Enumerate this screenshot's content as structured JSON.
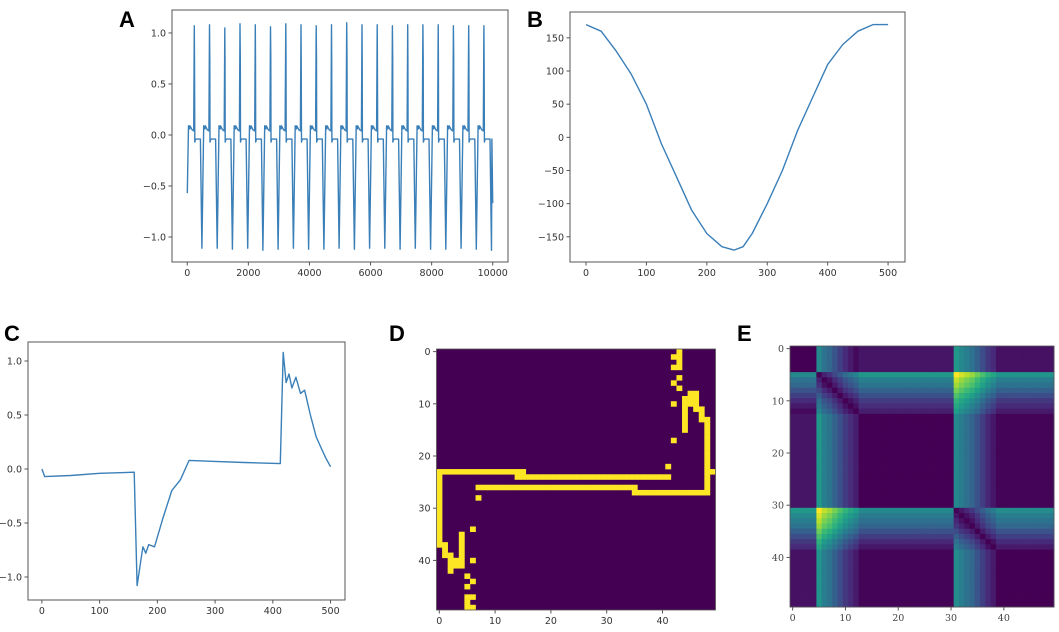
{
  "panel_labels": [
    "A",
    "B",
    "C",
    "D",
    "E"
  ],
  "colors": {
    "line": "#3a7fb8",
    "heat_low": "#440154",
    "heat_high": "#fde725",
    "axes": "#555555"
  },
  "chart_data": [
    {
      "panel": "A",
      "type": "line",
      "xlim": [
        -500,
        10500
      ],
      "ylim": [
        -1.245,
        1.225
      ],
      "xticks": [
        0,
        2000,
        4000,
        6000,
        8000,
        10000
      ],
      "yticks": [
        -1.0,
        -0.5,
        0.0,
        0.5,
        1.0
      ],
      "start": [
        0,
        -0.57
      ],
      "end": [
        10000,
        -0.67
      ],
      "peaks_x": [
        230,
        729,
        1228,
        1727,
        2226,
        2725,
        3224,
        3723,
        4222,
        4721,
        5220,
        5719,
        6218,
        6717,
        7216,
        7715,
        8214,
        8713,
        9212,
        9711
      ],
      "peaks_y": [
        1.07,
        1.08,
        1.05,
        1.09,
        1.08,
        1.06,
        1.09,
        1.08,
        1.07,
        1.08,
        1.1,
        1.08,
        1.08,
        1.07,
        1.08,
        1.08,
        1.08,
        1.07,
        1.07,
        1.07
      ],
      "troughs_y": [
        -1.11,
        -1.11,
        -1.12,
        -1.11,
        -1.13,
        -1.12,
        -1.11,
        -1.12,
        -1.12,
        -1.11,
        -1.12,
        -1.11,
        -1.11,
        -1.12,
        -1.11,
        -1.12,
        -1.12,
        -1.11,
        -1.12,
        -1.13
      ]
    },
    {
      "panel": "B",
      "type": "line",
      "xlim": [
        -26.5,
        528
      ],
      "ylim": [
        -188,
        189
      ],
      "xticks": [
        0,
        100,
        200,
        300,
        400,
        500
      ],
      "yticks": [
        -150,
        -100,
        -50,
        0,
        50,
        100,
        150
      ],
      "x": [
        0,
        25,
        50,
        75,
        100,
        125,
        150,
        175,
        200,
        225,
        245,
        260,
        275,
        300,
        325,
        350,
        375,
        400,
        425,
        450,
        475,
        500
      ],
      "y": [
        170,
        160,
        130,
        95,
        50,
        -10,
        -60,
        -110,
        -145,
        -165,
        -170,
        -165,
        -145,
        -100,
        -50,
        10,
        60,
        110,
        140,
        160,
        170,
        170
      ]
    },
    {
      "panel": "C",
      "type": "line",
      "xlim": [
        -24,
        525
      ],
      "ylim": [
        -1.213,
        1.176
      ],
      "xticks": [
        0,
        100,
        200,
        300,
        400,
        500
      ],
      "yticks": [
        -1.0,
        -0.5,
        0.0,
        0.5,
        1.0
      ],
      "x": [
        0,
        5,
        50,
        100,
        160,
        165,
        170,
        175,
        180,
        185,
        195,
        210,
        225,
        240,
        255,
        300,
        350,
        413,
        418,
        423,
        428,
        433,
        440,
        448,
        455,
        465,
        475,
        485,
        492,
        500
      ],
      "y": [
        0.0,
        -0.07,
        -0.06,
        -0.04,
        -0.03,
        -1.08,
        -0.9,
        -0.72,
        -0.78,
        -0.7,
        -0.72,
        -0.45,
        -0.2,
        -0.1,
        0.08,
        0.07,
        0.06,
        0.05,
        1.08,
        0.8,
        0.88,
        0.75,
        0.85,
        0.7,
        0.73,
        0.5,
        0.3,
        0.18,
        0.1,
        0.02
      ]
    },
    {
      "panel": "D",
      "type": "heatmap",
      "size": [
        50,
        50
      ],
      "xticks": [
        0,
        10,
        20,
        30,
        40
      ],
      "yticks": [
        0,
        10,
        20,
        30,
        40
      ],
      "values": "binary",
      "on_runs": [
        [
          0,
          43,
          43
        ],
        [
          1,
          42,
          43
        ],
        [
          2,
          43,
          43
        ],
        [
          3,
          42,
          43
        ],
        [
          5,
          43,
          43
        ],
        [
          6,
          42,
          42
        ],
        [
          7,
          43,
          43
        ],
        [
          8,
          45,
          46
        ],
        [
          9,
          44,
          46
        ],
        [
          10,
          42,
          42
        ],
        [
          10,
          44,
          46
        ],
        [
          11,
          44,
          44
        ],
        [
          11,
          46,
          47
        ],
        [
          12,
          44,
          44
        ],
        [
          12,
          47,
          47
        ],
        [
          13,
          44,
          44
        ],
        [
          13,
          47,
          48
        ],
        [
          14,
          44,
          44
        ],
        [
          14,
          48,
          48
        ],
        [
          15,
          44,
          44
        ],
        [
          15,
          48,
          48
        ],
        [
          16,
          48,
          48
        ],
        [
          17,
          42,
          42
        ],
        [
          17,
          48,
          48
        ],
        [
          18,
          48,
          48
        ],
        [
          19,
          48,
          48
        ],
        [
          20,
          48,
          48
        ],
        [
          21,
          48,
          48
        ],
        [
          22,
          41,
          41
        ],
        [
          22,
          48,
          48
        ],
        [
          23,
          0,
          15
        ],
        [
          23,
          48,
          49
        ],
        [
          24,
          0,
          0
        ],
        [
          24,
          14,
          41
        ],
        [
          24,
          48,
          48
        ],
        [
          25,
          0,
          0
        ],
        [
          25,
          48,
          48
        ],
        [
          26,
          0,
          0
        ],
        [
          26,
          7,
          35
        ],
        [
          26,
          48,
          48
        ],
        [
          27,
          0,
          0
        ],
        [
          27,
          35,
          48
        ],
        [
          28,
          0,
          0
        ],
        [
          28,
          7,
          7
        ],
        [
          29,
          0,
          0
        ],
        [
          30,
          0,
          0
        ],
        [
          31,
          0,
          0
        ],
        [
          32,
          0,
          0
        ],
        [
          33,
          0,
          0
        ],
        [
          34,
          0,
          0
        ],
        [
          34,
          6,
          6
        ],
        [
          35,
          0,
          0
        ],
        [
          35,
          4,
          4
        ],
        [
          36,
          0,
          0
        ],
        [
          36,
          4,
          4
        ],
        [
          37,
          0,
          1
        ],
        [
          37,
          4,
          4
        ],
        [
          38,
          1,
          1
        ],
        [
          38,
          4,
          4
        ],
        [
          39,
          1,
          2
        ],
        [
          39,
          4,
          4
        ],
        [
          40,
          2,
          4
        ],
        [
          40,
          6,
          6
        ],
        [
          41,
          2,
          4
        ],
        [
          42,
          2,
          2
        ],
        [
          43,
          5,
          5
        ],
        [
          44,
          6,
          6
        ],
        [
          45,
          5,
          5
        ],
        [
          47,
          5,
          6
        ],
        [
          48,
          5,
          5
        ],
        [
          49,
          5,
          6
        ]
      ]
    },
    {
      "panel": "E",
      "type": "heatmap",
      "size": [
        50,
        50
      ],
      "xticks": [
        0,
        10,
        20,
        30,
        40
      ],
      "yticks": [
        0,
        10,
        20,
        30,
        40
      ],
      "colormap": "viridis",
      "series": [
        -0.05,
        -0.05,
        -0.05,
        -0.05,
        -0.05,
        -1.05,
        -0.85,
        -0.75,
        -0.6,
        -0.45,
        -0.3,
        -0.2,
        -0.1,
        0.07,
        0.07,
        0.07,
        0.07,
        0.07,
        0.07,
        0.07,
        0.07,
        0.07,
        0.07,
        0.07,
        0.07,
        0.07,
        0.07,
        0.07,
        0.07,
        0.07,
        0.07,
        1.08,
        0.95,
        0.85,
        0.75,
        0.6,
        0.45,
        0.3,
        0.2,
        0.05,
        0.05,
        0.05,
        0.05,
        0.05,
        0.05,
        0.05,
        0.05,
        0.05,
        0.05,
        0.05
      ]
    }
  ]
}
